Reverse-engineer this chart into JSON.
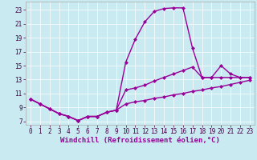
{
  "bg_color": "#c8eaf0",
  "line_color": "#990099",
  "marker_style": "D",
  "marker_size": 2,
  "line_width": 1.0,
  "grid_color": "#ffffff",
  "grid_linewidth": 0.5,
  "xlabel": "Windchill (Refroidissement éolien,°C)",
  "xlabel_fontsize": 6.5,
  "tick_fontsize": 5.5,
  "xlim": [
    -0.5,
    23.5
  ],
  "ylim": [
    6.5,
    24.2
  ],
  "yticks": [
    7,
    9,
    11,
    13,
    15,
    17,
    19,
    21,
    23
  ],
  "xticks": [
    0,
    1,
    2,
    3,
    4,
    5,
    6,
    7,
    8,
    9,
    10,
    11,
    12,
    13,
    14,
    15,
    16,
    17,
    18,
    19,
    20,
    21,
    22,
    23
  ],
  "curve_top_x": [
    0,
    1,
    2,
    3,
    4,
    5,
    6,
    7,
    8,
    9,
    10,
    11,
    12,
    13,
    14,
    15,
    16,
    17,
    18,
    19,
    20,
    21,
    22,
    23
  ],
  "curve_top_y": [
    10.2,
    9.5,
    8.8,
    8.1,
    7.7,
    7.1,
    7.7,
    7.7,
    8.3,
    8.6,
    15.5,
    18.8,
    21.3,
    22.8,
    23.2,
    23.3,
    23.3,
    17.5,
    13.3,
    13.3,
    13.3,
    13.3,
    13.3,
    13.3
  ],
  "curve_mid_x": [
    0,
    1,
    2,
    3,
    4,
    5,
    6,
    7,
    8,
    9,
    10,
    11,
    12,
    13,
    14,
    15,
    16,
    17,
    18,
    19,
    20,
    21,
    22,
    23
  ],
  "curve_mid_y": [
    10.2,
    9.5,
    8.8,
    8.1,
    7.7,
    7.1,
    7.7,
    7.7,
    8.3,
    8.6,
    11.5,
    11.8,
    12.2,
    12.8,
    13.3,
    13.8,
    14.3,
    14.8,
    13.3,
    13.3,
    15.0,
    13.8,
    13.3,
    13.3
  ],
  "curve_bot_x": [
    0,
    1,
    2,
    3,
    4,
    5,
    6,
    7,
    8,
    9,
    10,
    11,
    12,
    13,
    14,
    15,
    16,
    17,
    18,
    19,
    20,
    21,
    22,
    23
  ],
  "curve_bot_y": [
    10.2,
    9.5,
    8.8,
    8.1,
    7.7,
    7.1,
    7.7,
    7.7,
    8.3,
    8.6,
    9.5,
    9.8,
    10.0,
    10.3,
    10.5,
    10.8,
    11.0,
    11.3,
    11.5,
    11.8,
    12.0,
    12.3,
    12.6,
    12.9
  ]
}
